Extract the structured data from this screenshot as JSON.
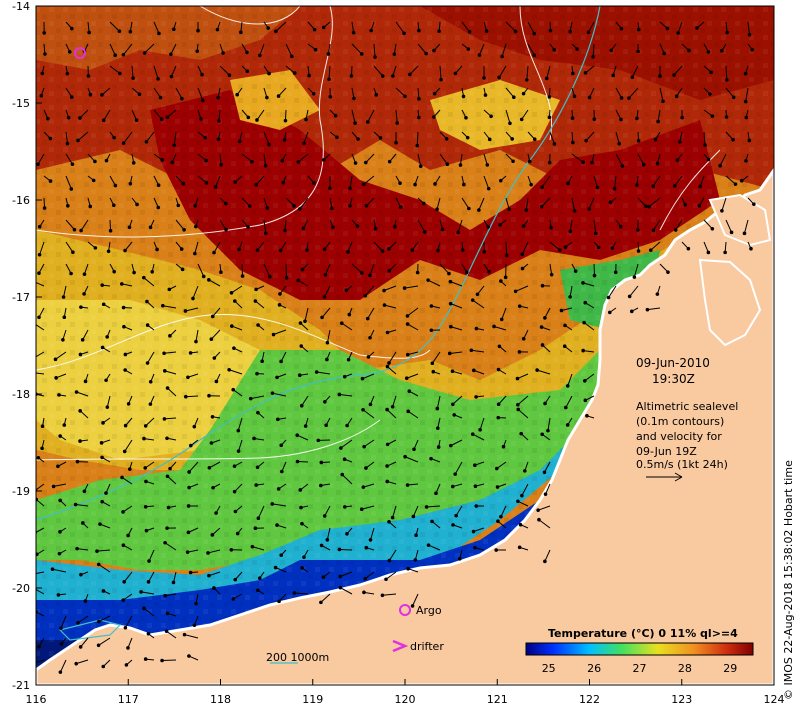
{
  "axes": {
    "x_ticks": [
      "116",
      "117",
      "118",
      "119",
      "120",
      "121",
      "122",
      "123",
      "124"
    ],
    "y_ticks": [
      "-14",
      "-15",
      "-16",
      "-17",
      "-18",
      "-19",
      "-20",
      "-21"
    ]
  },
  "annotation": {
    "date": "09-Jun-2010",
    "time": "19:30Z",
    "desc_lines": [
      "Altimetric sealevel",
      "(0.1m contours)",
      "and velocity for",
      "09-Jun 19Z",
      "0.5m/s (1kt 24h)"
    ]
  },
  "legend": {
    "argo_label": "Argo",
    "drifter_label": "drifter",
    "scale_label": "200  1000m",
    "colorbar_title": "Temperature (°C) 0 11% ql>=4",
    "colorbar_ticks": [
      "25",
      "26",
      "27",
      "28",
      "29"
    ]
  },
  "credit": "© IMOS 22-Aug-2018 15:38:02 Hobart time",
  "colors": {
    "land": "#f9c9a0",
    "deep_blue": "#001a8c",
    "warm_red": "#9c0000",
    "orange": "#d97a10",
    "yellow": "#e8c020",
    "green": "#4ec040",
    "cyan_line": "#40b8c0",
    "magenta": "#e040e0"
  },
  "chart_data": {
    "type": "heatmap",
    "title": "Temperature (°C) 0 11% ql>=4",
    "xlim": [
      116,
      124
    ],
    "ylim": [
      -21,
      -14
    ],
    "colorbar_range": [
      24.5,
      29.5
    ],
    "argo_markers": [
      {
        "lon": 116.5,
        "lat": -14.5
      }
    ]
  }
}
